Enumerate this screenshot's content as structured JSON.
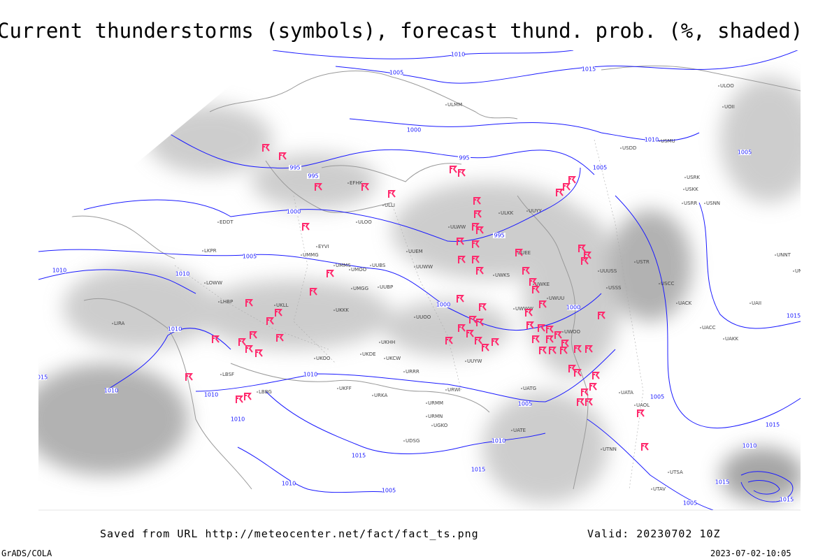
{
  "header": {
    "title": "Current thunderstorms (symbols), forecast thund. prob. (%, shaded)"
  },
  "footer": {
    "source": "Saved from URL http://meteocenter.net/fact/fact_ts.png",
    "valid": "Valid: 20230702 10Z",
    "credit": "GrADS/COLA",
    "timestamp": "2023-07-02-10:05"
  },
  "isobar_labels": [
    "1010",
    "1005",
    "1015",
    "1000",
    "1010",
    "1005",
    "1005",
    "995",
    "995",
    "995",
    "1000",
    "995",
    "1005",
    "1010",
    "1010",
    "1000",
    "1000",
    "1010",
    "1015",
    "1010",
    "1010",
    "1010",
    "1005",
    "1005",
    "1015",
    "1010",
    "1010",
    "1015",
    "1015",
    "1010",
    "1005",
    "1010",
    "1015",
    "1015",
    "1005",
    "1015"
  ],
  "station_labels": [
    "ULOO",
    "UOII",
    "USMU",
    "ULMM",
    "USDD",
    "EFHK",
    "ULLI",
    "ULOO",
    "ULKK",
    "UUYY",
    "ULWW",
    "EDDT",
    "UKLL",
    "EYVI",
    "UMMG",
    "UMMS",
    "UMOO",
    "UUBS",
    "UUEM",
    "UUWW",
    "UWKS",
    "UMGG",
    "UUBP",
    "UKKK",
    "UUOO",
    "UKHH",
    "UKDE",
    "UKOO",
    "UKCW",
    "URRR",
    "URWI",
    "URKA",
    "URMM",
    "URMN",
    "UGKO",
    "UDSG",
    "UUUSS",
    "USSS",
    "USCC",
    "UACK",
    "UACC",
    "UAKK",
    "UAII",
    "UATG",
    "UATA",
    "UAOL",
    "UATE",
    "UTNN",
    "UTSA",
    "UTAV",
    "LKPR",
    "LOWW",
    "LHBP",
    "LIRA",
    "LBSF",
    "LBBG",
    "UKFF",
    "UUYW",
    "USRR",
    "USNN",
    "UNNT",
    "UNBB",
    "USKK",
    "USTR",
    "UWKE",
    "UWUU",
    "UWOO",
    "UWWW",
    "USRK",
    "UUEE"
  ]
}
